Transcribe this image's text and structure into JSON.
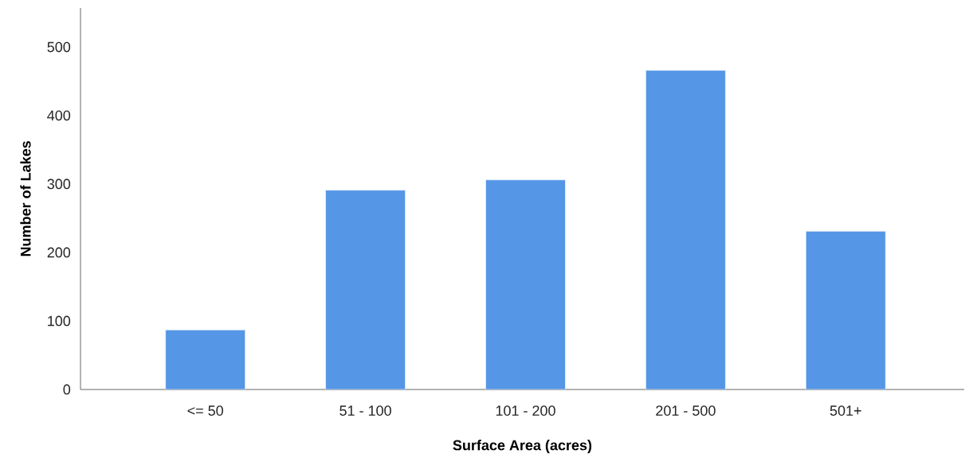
{
  "chart_data": {
    "type": "bar",
    "xlabel": "Surface Area (acres)",
    "ylabel": "Number of Lakes",
    "categories": [
      "<= 50",
      "51 - 100",
      "101 - 200",
      "201 - 500",
      "501+"
    ],
    "values": [
      87,
      291,
      306,
      466,
      231
    ],
    "color": "#5596e6",
    "ylim": [
      0,
      557
    ],
    "yticks": [
      0,
      100,
      200,
      300,
      400,
      500
    ],
    "grid": false
  }
}
